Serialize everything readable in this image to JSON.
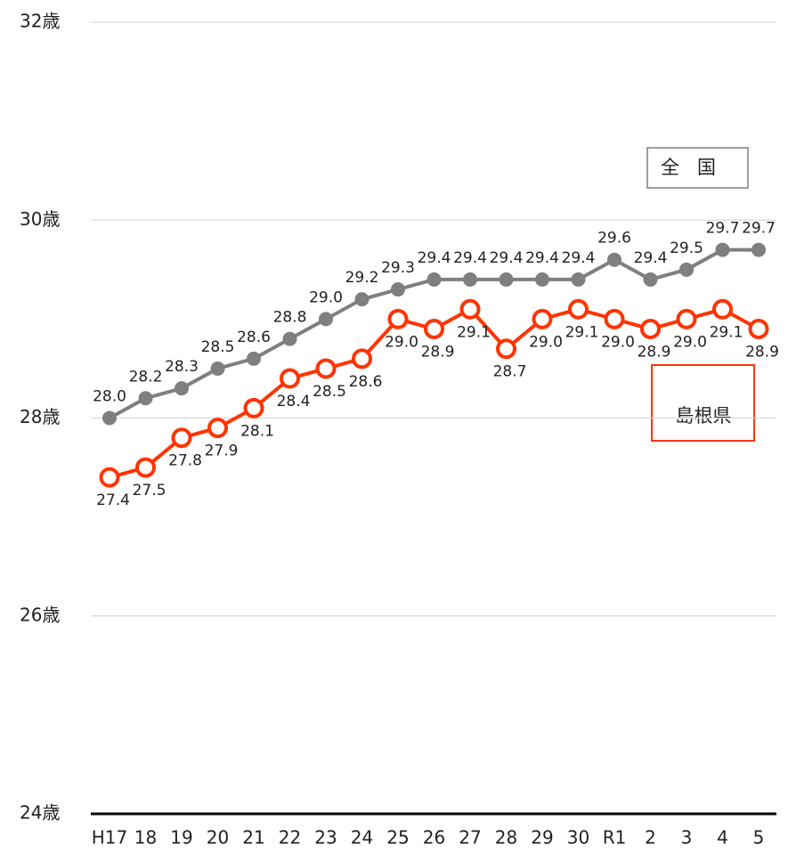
{
  "chart_data": {
    "type": "line",
    "categories": [
      "H17",
      "18",
      "19",
      "20",
      "21",
      "22",
      "23",
      "24",
      "25",
      "26",
      "27",
      "28",
      "29",
      "30",
      "R1",
      "2",
      "3",
      "4",
      "5"
    ],
    "series": [
      {
        "name": "全国",
        "color": "#7f7f7f",
        "marker": "filled",
        "values": [
          28.0,
          28.2,
          28.3,
          28.5,
          28.6,
          28.8,
          29.0,
          29.2,
          29.3,
          29.4,
          29.4,
          29.4,
          29.4,
          29.4,
          29.6,
          29.4,
          29.5,
          29.7,
          29.7
        ],
        "value_labels": [
          "28.0",
          "28.2",
          "28.3",
          "28.5",
          "28.6",
          "28.8",
          "29.0",
          "29.2",
          "29.3",
          "29.4",
          "29.4",
          "29.4",
          "29.4",
          "29.4",
          "29.6",
          "29.4",
          "29.5",
          "29.7",
          "29.7"
        ]
      },
      {
        "name": "島根県",
        "color": "#ff3300",
        "marker": "hollow",
        "values": [
          27.4,
          27.5,
          27.8,
          27.9,
          28.1,
          28.4,
          28.5,
          28.6,
          29.0,
          28.9,
          29.1,
          28.7,
          29.0,
          29.1,
          29.0,
          28.9,
          29.0,
          29.1,
          28.9
        ],
        "value_labels": [
          "27.4",
          "27.5",
          "27.8",
          "27.9",
          "28.1",
          "28.4",
          "28.5",
          "28.6",
          "29.0",
          "28.9",
          "29.1",
          "28.7",
          "29.0",
          "29.1",
          "29.0",
          "28.9",
          "29.0",
          "29.1",
          "28.9"
        ]
      }
    ],
    "ylim": [
      24,
      32
    ],
    "yticks": [
      {
        "value": 24,
        "label": "24歳"
      },
      {
        "value": 26,
        "label": "26歳"
      },
      {
        "value": 28,
        "label": "28歳"
      },
      {
        "value": 30,
        "label": "30歳"
      },
      {
        "value": 32,
        "label": "32歳"
      }
    ],
    "grid": true
  }
}
